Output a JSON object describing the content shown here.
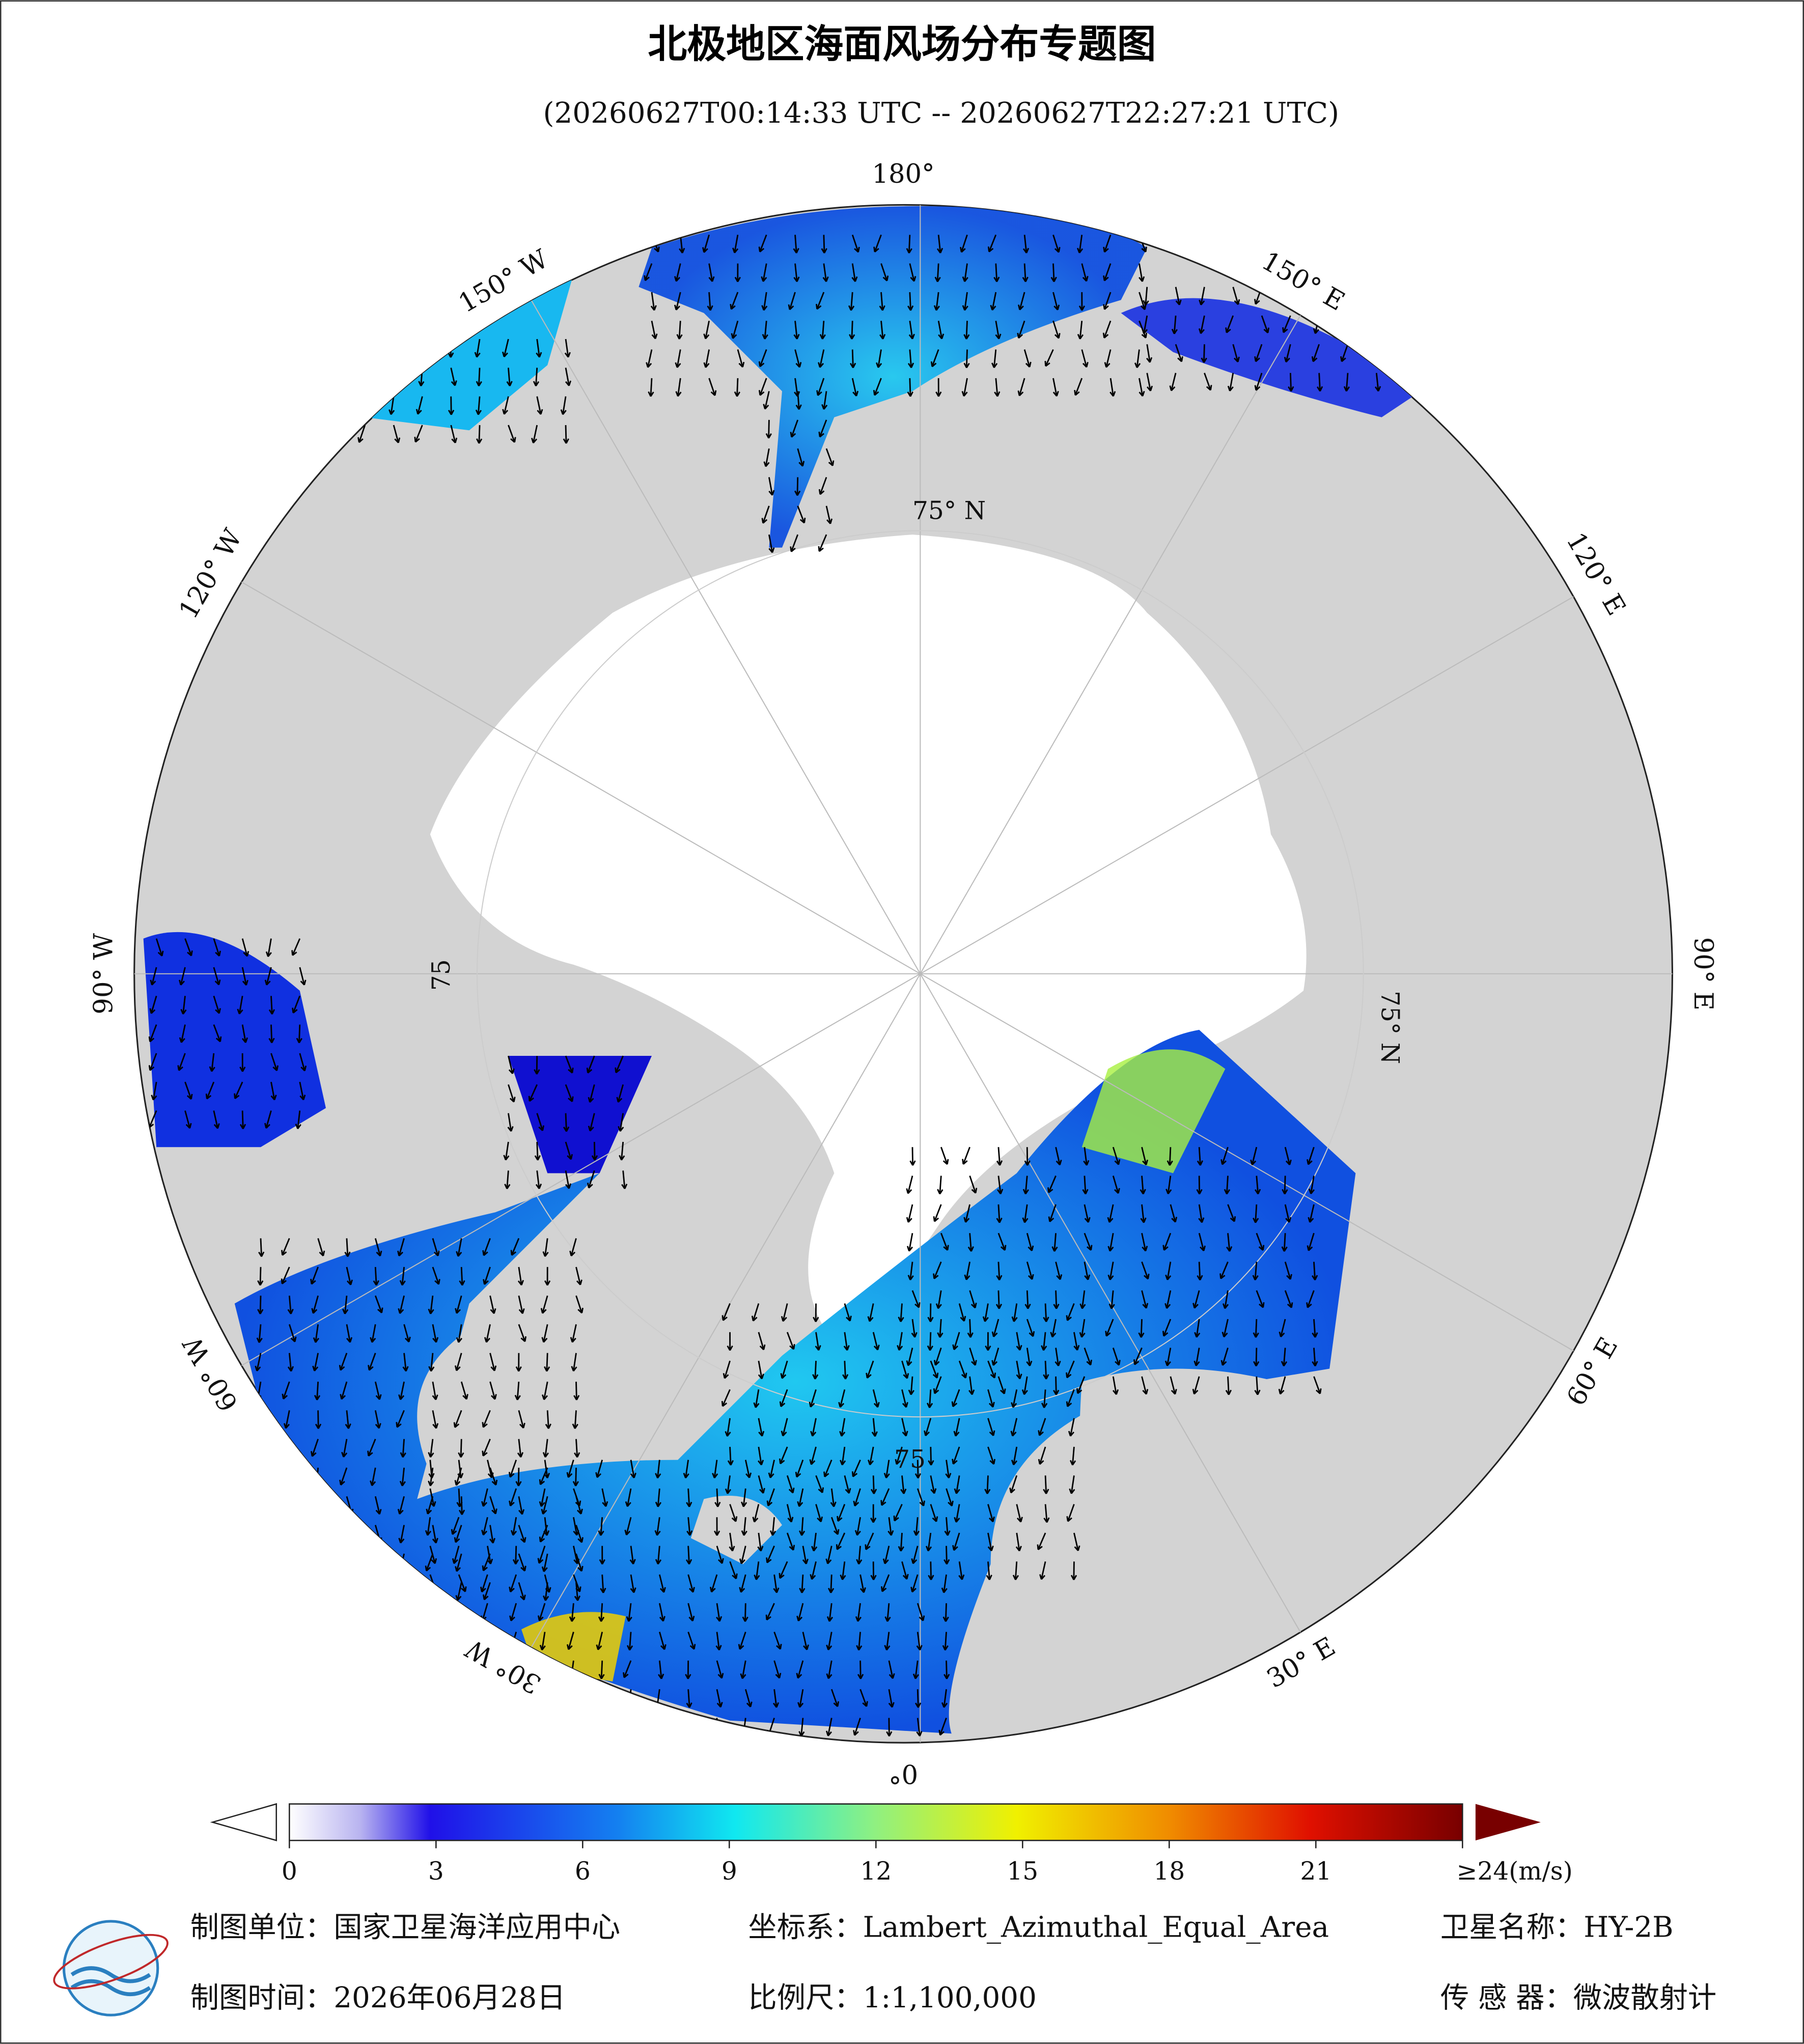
{
  "title": "北极地区海面风场分布专题图",
  "subtitle": "(20260627T00:14:33 UTC -- 20260627T22:27:21 UTC)",
  "map": {
    "lon_labels": [
      {
        "lon": 180,
        "label": "180°"
      },
      {
        "lon": 150,
        "label": "150° E"
      },
      {
        "lon": 120,
        "label": "120° E"
      },
      {
        "lon": 90,
        "label": "90° E"
      },
      {
        "lon": 60,
        "label": "60° E"
      },
      {
        "lon": 30,
        "label": "30° E"
      },
      {
        "lon": 0,
        "label": "0°"
      },
      {
        "lon": -30,
        "label": "30° W"
      },
      {
        "lon": -60,
        "label": "60° W"
      },
      {
        "lon": -90,
        "label": "90° W"
      },
      {
        "lon": -120,
        "label": "120° W"
      },
      {
        "lon": -150,
        "label": "150° W"
      }
    ],
    "lat_labels": [
      "75° N",
      "75° N",
      "75",
      "75"
    ]
  },
  "colorbar": {
    "lim": [
      0,
      24
    ],
    "ticks": [
      0,
      3,
      6,
      9,
      12,
      15,
      18,
      21,
      {
        "value": 24,
        "label": "≥24(m/s)"
      }
    ]
  },
  "footer": {
    "unit": "制图单位：国家卫星海洋应用中心",
    "crs": "坐标系：Lambert_Azimuthal_Equal_Area",
    "satellite": "卫星名称：HY-2B",
    "date": "制图时间：2026年06月28日",
    "scale": "比例尺：1:1,100,000",
    "sensor": "传 感 器：微波散射计"
  }
}
